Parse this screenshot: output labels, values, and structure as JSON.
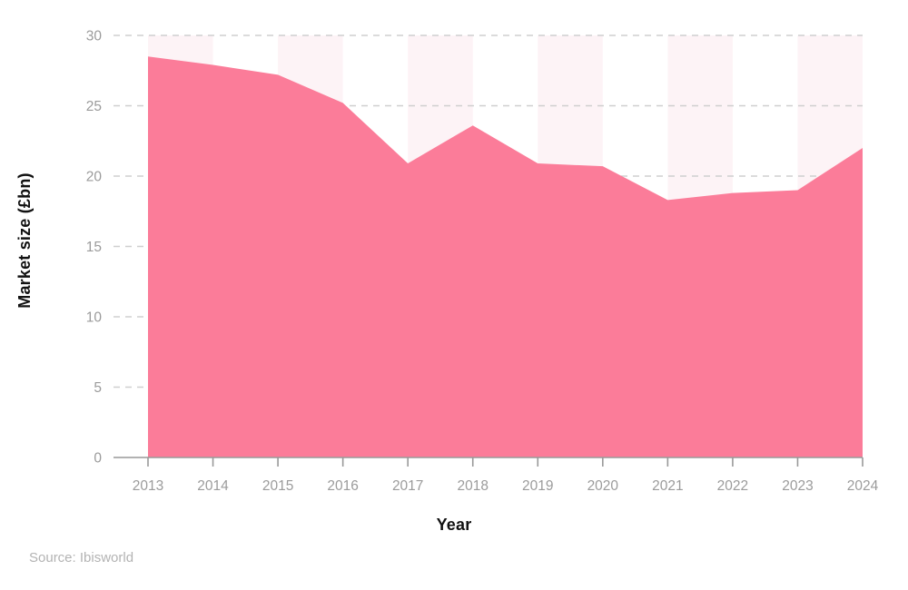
{
  "chart_data": {
    "type": "area",
    "title": "",
    "xlabel": "Year",
    "ylabel": "Market size (£bn)",
    "x": [
      2013,
      2014,
      2015,
      2016,
      2017,
      2018,
      2019,
      2020,
      2021,
      2022,
      2023,
      2024
    ],
    "series": [
      {
        "name": "Market size (£bn)",
        "values": [
          28.5,
          27.9,
          27.2,
          25.2,
          20.9,
          23.6,
          20.9,
          20.7,
          18.3,
          18.8,
          19.0,
          22.0
        ]
      }
    ],
    "ylim": [
      0,
      30
    ],
    "yticks": [
      0,
      5,
      10,
      15,
      20,
      25,
      30
    ],
    "grid": "horizontal-dashed",
    "legend": "none",
    "band_pattern": "alternate-year-pairs",
    "area_color": "#fb7c99",
    "band_color": "#fdf3f6",
    "grid_color": "#cfcfcf",
    "axis_color": "#999999",
    "tick_label_color": "#9b9b9b",
    "title_color": "#111111"
  },
  "source": {
    "label": "Source: Ibisworld",
    "color": "#b3b3b3"
  }
}
